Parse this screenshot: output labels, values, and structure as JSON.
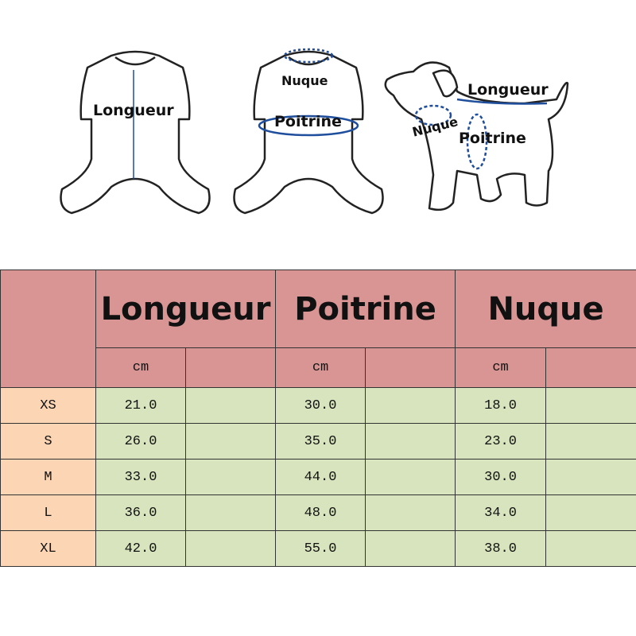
{
  "illustrations": {
    "suit_front_label": "Longueur",
    "suit_back_labels": [
      "Nuque",
      "Poitrine"
    ],
    "dog_labels": [
      "Longueur",
      "Nuque",
      "Poitrine"
    ],
    "arrow_color": "#1f4e9c"
  },
  "table": {
    "headers": [
      "Longueur",
      "Poitrine",
      "Nuque"
    ],
    "unit": "cm",
    "rows": [
      {
        "size": "XS",
        "values": [
          "21.0",
          "30.0",
          "18.0"
        ]
      },
      {
        "size": "S",
        "values": [
          "26.0",
          "35.0",
          "23.0"
        ]
      },
      {
        "size": "M",
        "values": [
          "33.0",
          "44.0",
          "30.0"
        ]
      },
      {
        "size": "L",
        "values": [
          "36.0",
          "48.0",
          "34.0"
        ]
      },
      {
        "size": "XL",
        "values": [
          "42.0",
          "55.0",
          "38.0"
        ]
      }
    ],
    "colors": {
      "header": "#d99594",
      "size_column": "#fcd5b4",
      "values": "#d7e4bd"
    }
  }
}
